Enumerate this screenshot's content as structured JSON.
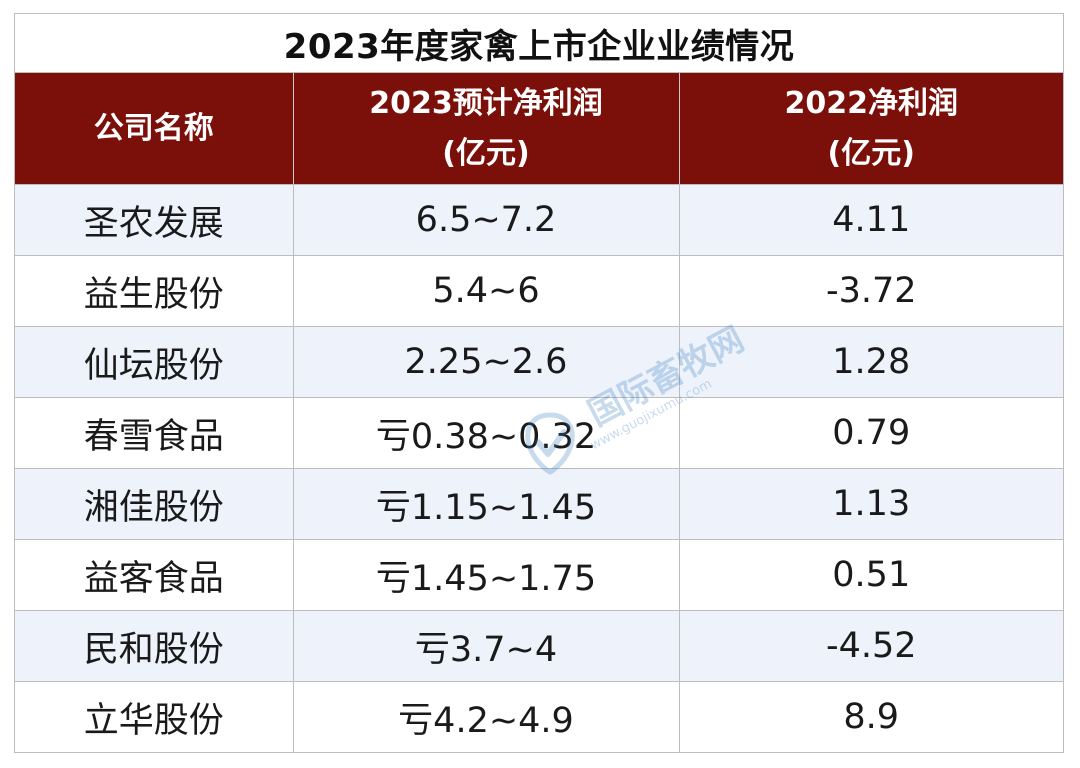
{
  "title": "2023年度家禽上市企业业绩情况",
  "header": {
    "col1": "公司名称",
    "col2_line1": "2023预计净利润",
    "col2_line2": "(亿元)",
    "col3_line1": "2022净利润",
    "col3_line2": "(亿元)"
  },
  "rows": [
    {
      "name": "圣农发展",
      "est_2023": "6.5~7.2",
      "profit_2022": "4.11"
    },
    {
      "name": "益生股份",
      "est_2023": "5.4~6",
      "profit_2022": "-3.72"
    },
    {
      "name": "仙坛股份",
      "est_2023": "2.25~2.6",
      "profit_2022": "1.28"
    },
    {
      "name": "春雪食品",
      "est_2023": "亏0.38~0.32",
      "profit_2022": "0.79"
    },
    {
      "name": "湘佳股份",
      "est_2023": "亏1.15~1.45",
      "profit_2022": "1.13"
    },
    {
      "name": "益客食品",
      "est_2023": "亏1.45~1.75",
      "profit_2022": "0.51"
    },
    {
      "name": "民和股份",
      "est_2023": "亏3.7~4",
      "profit_2022": "-4.52"
    },
    {
      "name": "立华股份",
      "est_2023": "亏4.2~4.9",
      "profit_2022": "8.9"
    }
  ],
  "watermark": {
    "text": "国际畜牧网",
    "url": "www.guojixumu.com"
  },
  "colors": {
    "header_bg": "#7b0f0a",
    "profit_red": "#e8202a",
    "negative_green": "#6aab48",
    "row_alt_bg": "#eef3fb"
  }
}
